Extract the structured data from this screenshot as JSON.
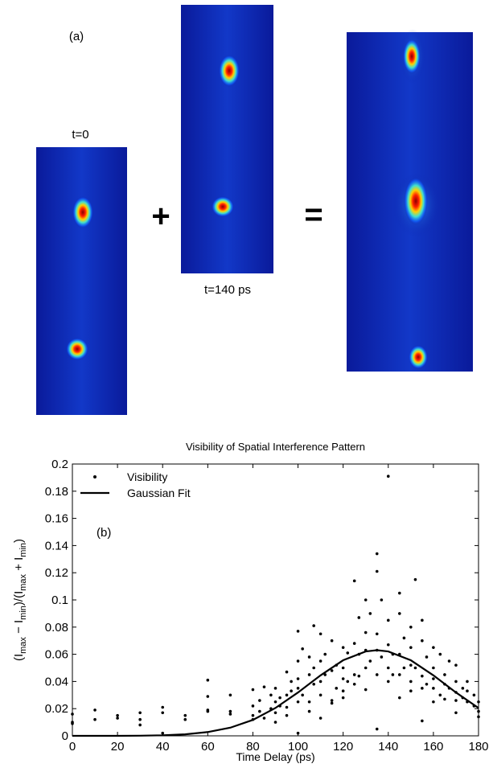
{
  "panel_a": {
    "label": "(a)",
    "image_labels": [
      "t=0",
      "t=140 ps"
    ],
    "operators": [
      "+",
      "="
    ]
  },
  "chart_data": {
    "type": "scatter",
    "title": "Visibility of Spatial Interference Pattern",
    "xlabel": "Time Delay (ps)",
    "ylabel": [
      "(I",
      "max",
      " − I",
      "min",
      ")/(I",
      "max",
      " + I",
      "min",
      ")"
    ],
    "annotation": "(b)",
    "xlim": [
      0,
      180
    ],
    "ylim": [
      0,
      0.2
    ],
    "xticks": [
      0,
      20,
      40,
      60,
      80,
      100,
      120,
      140,
      160,
      180
    ],
    "yticks": [
      0,
      0.02,
      0.04,
      0.06,
      0.08,
      0.1,
      0.12,
      0.14,
      0.16,
      0.18,
      0.2
    ],
    "legend": "upper left",
    "series": [
      {
        "name": "Visibility",
        "color": "#000000",
        "kind": "points",
        "x": [
          0,
          0,
          0,
          10,
          10,
          20,
          20,
          30,
          30,
          30,
          40,
          40,
          40,
          50,
          50,
          60,
          60,
          60,
          60,
          70,
          70,
          70,
          80,
          80,
          80,
          80,
          83,
          83,
          85,
          85,
          88,
          88,
          90,
          90,
          90,
          90,
          92,
          92,
          95,
          95,
          95,
          95,
          97,
          97,
          100,
          100,
          100,
          100,
          100,
          100,
          102,
          102,
          105,
          105,
          105,
          105,
          107,
          107,
          107,
          110,
          110,
          110,
          110,
          110,
          112,
          112,
          115,
          115,
          115,
          115,
          117,
          117,
          120,
          120,
          120,
          120,
          120,
          122,
          122,
          125,
          125,
          125,
          125,
          127,
          127,
          127,
          130,
          130,
          130,
          130,
          130,
          132,
          132,
          135,
          135,
          135,
          135,
          135,
          135,
          137,
          137,
          140,
          140,
          140,
          140,
          140,
          142,
          142,
          145,
          145,
          145,
          145,
          145,
          147,
          147,
          150,
          150,
          150,
          150,
          150,
          152,
          152,
          155,
          155,
          155,
          155,
          155,
          157,
          157,
          160,
          160,
          160,
          160,
          160,
          163,
          163,
          165,
          165,
          165,
          167,
          167,
          170,
          170,
          170,
          170,
          170,
          173,
          173,
          175,
          175,
          175,
          178,
          178,
          180,
          180,
          180
        ],
        "values": [
          0.016,
          0.01,
          0.009,
          0.019,
          0.012,
          0.015,
          0.013,
          0.017,
          0.012,
          0.008,
          0.021,
          0.017,
          0.002,
          0.015,
          0.012,
          0.041,
          0.029,
          0.019,
          0.018,
          0.03,
          0.018,
          0.016,
          0.034,
          0.022,
          0.015,
          0.012,
          0.018,
          0.026,
          0.013,
          0.036,
          0.02,
          0.03,
          0.035,
          0.025,
          0.017,
          0.01,
          0.022,
          0.028,
          0.047,
          0.03,
          0.021,
          0.015,
          0.033,
          0.04,
          0.077,
          0.055,
          0.042,
          0.035,
          0.025,
          0.002,
          0.064,
          0.03,
          0.058,
          0.045,
          0.025,
          0.018,
          0.081,
          0.05,
          0.038,
          0.075,
          0.055,
          0.04,
          0.03,
          0.013,
          0.06,
          0.045,
          0.07,
          0.048,
          0.026,
          0.024,
          0.052,
          0.035,
          0.065,
          0.05,
          0.042,
          0.033,
          0.028,
          0.061,
          0.04,
          0.114,
          0.068,
          0.045,
          0.038,
          0.087,
          0.06,
          0.044,
          0.1,
          0.076,
          0.063,
          0.05,
          0.034,
          0.09,
          0.055,
          0.134,
          0.121,
          0.075,
          0.063,
          0.045,
          0.005,
          0.1,
          0.058,
          0.191,
          0.085,
          0.067,
          0.05,
          0.04,
          0.06,
          0.045,
          0.105,
          0.09,
          0.06,
          0.045,
          0.028,
          0.072,
          0.05,
          0.08,
          0.065,
          0.052,
          0.04,
          0.033,
          0.115,
          0.05,
          0.085,
          0.07,
          0.044,
          0.035,
          0.011,
          0.058,
          0.038,
          0.065,
          0.05,
          0.042,
          0.035,
          0.025,
          0.06,
          0.03,
          0.045,
          0.038,
          0.027,
          0.055,
          0.035,
          0.052,
          0.04,
          0.032,
          0.026,
          0.017,
          0.035,
          0.028,
          0.04,
          0.033,
          0.025,
          0.03,
          0.022,
          0.025,
          0.018,
          0.014
        ]
      },
      {
        "name": "Gaussian Fit",
        "color": "#000000",
        "kind": "line",
        "x": [
          0,
          10,
          20,
          30,
          40,
          50,
          60,
          70,
          80,
          90,
          100,
          110,
          120,
          130,
          135,
          140,
          150,
          160,
          170,
          180
        ],
        "values": [
          0,
          0,
          0,
          0.0001,
          0.0004,
          0.0011,
          0.0028,
          0.006,
          0.0117,
          0.0205,
          0.0319,
          0.0445,
          0.0556,
          0.0621,
          0.063,
          0.0621,
          0.0556,
          0.0445,
          0.0319,
          0.0205
        ]
      }
    ]
  }
}
